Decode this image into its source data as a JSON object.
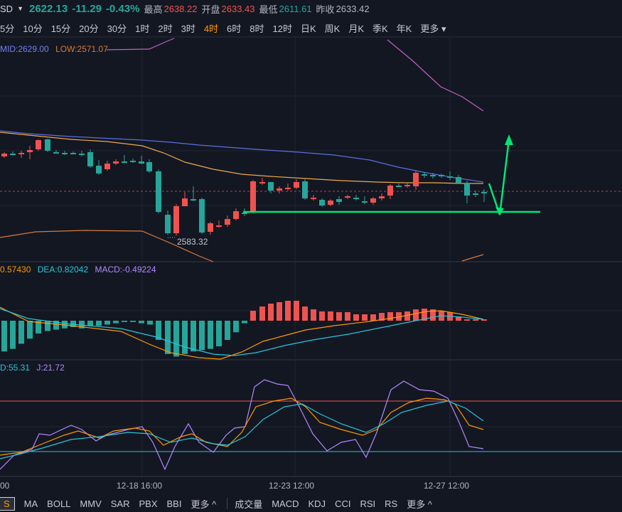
{
  "header": {
    "symbol_suffix": "SD",
    "last_price": "2622.13",
    "change": "-11.29",
    "change_pct": "-0.43%",
    "high_label": "最高",
    "high": "2638.22",
    "open_label": "开盘",
    "open": "2633.43",
    "low_label": "最低",
    "low": "2611.61",
    "prev_close_label": "昨收",
    "prev_close": "2633.42"
  },
  "timeframes": {
    "items": [
      "5分",
      "10分",
      "15分",
      "20分",
      "30分",
      "1时",
      "2时",
      "3时",
      "4时",
      "6时",
      "8时",
      "12时",
      "日K",
      "周K",
      "月K",
      "季K",
      "年K",
      "更多"
    ],
    "active": "4时"
  },
  "main_legend": {
    "mid": "MID:2629.00",
    "low": "LOW:2571.07"
  },
  "price_annotation": "2583.32",
  "macd_legend": {
    "dif": "0.57430",
    "dea": "DEA:0.82042",
    "macd": "MACD:-0.49224"
  },
  "kdj_legend": {
    "d": "D:55.31",
    "j": "J:21.72"
  },
  "time_axis": [
    "00",
    "12-18 16:00",
    "12-23 12:00",
    "12-27 12:00"
  ],
  "bottom_toolbar": {
    "selected": "S",
    "main_indicators": [
      "MA",
      "BOLL",
      "MMV",
      "SAR",
      "PBX",
      "BBI",
      "更多 ^"
    ],
    "sub_indicators": [
      "成交量",
      "MACD",
      "KDJ",
      "CCI",
      "RSI",
      "RS",
      "更多 ^"
    ]
  },
  "colors": {
    "background": "#131722",
    "up": "#ef5350",
    "down": "#26a69a",
    "accent": "#ff9800",
    "annotation": "#00e676",
    "boll_upper": "#c061c0",
    "boll_mid": "#5b6fe0",
    "boll_low": "#d97a3a",
    "ma": "#f0a848",
    "dif": "#ff9800",
    "dea": "#26c6da",
    "k": "#ff9800",
    "d": "#26c6da",
    "j": "#b388ff"
  }
}
